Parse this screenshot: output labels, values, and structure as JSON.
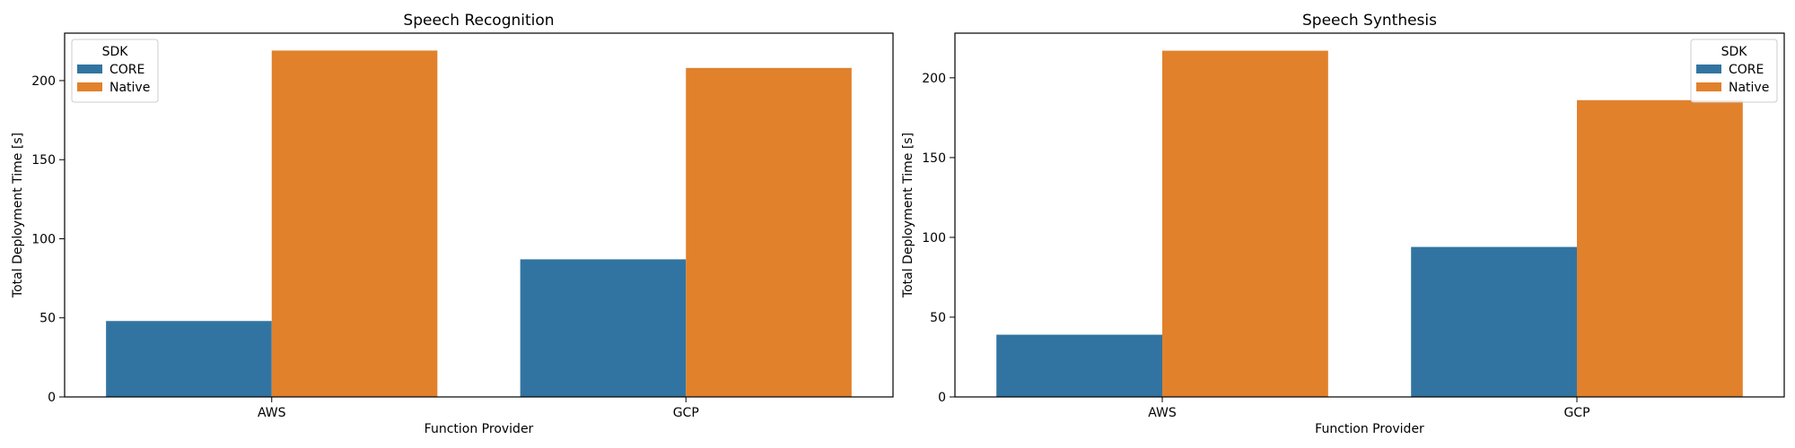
{
  "colors": {
    "CORE": "#3274a1",
    "Native": "#e1812c"
  },
  "chart_data": [
    {
      "type": "bar",
      "title": "Speech Recognition",
      "xlabel": "Function Provider",
      "ylabel": "Total Deployment Time [s]",
      "categories": [
        "AWS",
        "GCP"
      ],
      "ylim": [
        0,
        230
      ],
      "yticks": [
        0,
        50,
        100,
        150,
        200
      ],
      "grid": false,
      "legend": {
        "title": "SDK",
        "placement": "top-left"
      },
      "series": [
        {
          "name": "CORE",
          "values": [
            48,
            87
          ]
        },
        {
          "name": "Native",
          "values": [
            219,
            208
          ]
        }
      ]
    },
    {
      "type": "bar",
      "title": "Speech Synthesis",
      "xlabel": "Function Provider",
      "ylabel": "Total Deployment Time [s]",
      "categories": [
        "AWS",
        "GCP"
      ],
      "ylim": [
        0,
        228
      ],
      "yticks": [
        0,
        50,
        100,
        150,
        200
      ],
      "grid": false,
      "legend": {
        "title": "SDK",
        "placement": "top-right"
      },
      "series": [
        {
          "name": "CORE",
          "values": [
            39,
            94
          ]
        },
        {
          "name": "Native",
          "values": [
            217,
            186
          ]
        }
      ]
    }
  ]
}
